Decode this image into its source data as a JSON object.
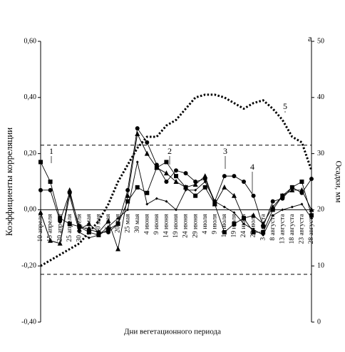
{
  "chart_data": {
    "type": "line",
    "panel_label": "а",
    "y_label": "Коэффициенты корреляции",
    "y2_label": "Осадки, мм",
    "x_label": "Дни вегетационного периода",
    "categories": [
      "10 апреля",
      "15 апреля",
      "20 апреля",
      "25 апреля",
      "30 апреля",
      "5 мая",
      "10 мая",
      "15 мая",
      "20 мая",
      "25 мая",
      "30 мая",
      "4 июня",
      "9 июня",
      "14 июня",
      "19 июня",
      "24 июня",
      "29 июня",
      "4 июля",
      "9 июля",
      "14 июля",
      "19 июля",
      "24 июля",
      "29 июля",
      "3 августа",
      "8 августа",
      "13 августа",
      "18 августа",
      "23 августа",
      "28 августа"
    ],
    "ylim": [
      -0.4,
      0.6
    ],
    "yticks": [
      {
        "value": -0.4,
        "label": "-0,40"
      },
      {
        "value": -0.2,
        "label": "-0,20"
      },
      {
        "value": 0,
        "label": "0,00"
      },
      {
        "value": 0.2,
        "label": "0,20"
      },
      {
        "value": 0.4,
        "label": "0,40"
      },
      {
        "value": 0.6,
        "label": "0,60"
      }
    ],
    "y2lim": [
      0,
      50
    ],
    "y2ticks": [
      0,
      10,
      20,
      30,
      40,
      50
    ],
    "threshold_lines": [
      0.23,
      -0.23
    ],
    "series": [
      {
        "name": "1",
        "color": "#000000",
        "marker": "square",
        "values": [
          0.17,
          0.1,
          -0.03,
          -0.05,
          -0.06,
          -0.08,
          -0.09,
          -0.07,
          -0.05,
          0.03,
          0.08,
          0.06,
          0.15,
          0.17,
          0.12,
          0.08,
          0.05,
          0.08,
          0.02,
          -0.08,
          -0.05,
          -0.03,
          -0.08,
          -0.08,
          0.0,
          0.05,
          0.08,
          0.1,
          -0.02
        ]
      },
      {
        "name": "2",
        "color": "#000000",
        "marker": "triangle",
        "values": [
          -0.01,
          -0.11,
          -0.12,
          0.07,
          -0.07,
          -0.05,
          -0.08,
          -0.04,
          -0.14,
          0.05,
          0.27,
          0.2,
          0.15,
          0.13,
          0.1,
          0.08,
          0.09,
          0.12,
          0.02,
          0.08,
          0.05,
          -0.03,
          -0.02,
          -0.05,
          0.01,
          0.05,
          0.07,
          0.07,
          0.0
        ]
      },
      {
        "name": "3",
        "color": "#000000",
        "marker": "circle",
        "values": [
          0.07,
          0.07,
          -0.04,
          0.06,
          -0.06,
          -0.07,
          -0.08,
          -0.08,
          -0.05,
          0.07,
          0.29,
          0.24,
          0.16,
          0.1,
          0.14,
          0.13,
          0.1,
          0.11,
          0.03,
          0.12,
          0.12,
          0.1,
          0.05,
          -0.06,
          0.03,
          0.04,
          0.08,
          0.06,
          0.11
        ]
      },
      {
        "name": "4",
        "color": "#000000",
        "marker": "diamond",
        "values": [
          -0.01,
          -0.11,
          -0.12,
          0.05,
          -0.08,
          -0.1,
          -0.09,
          -0.06,
          -0.03,
          0.0,
          0.17,
          0.02,
          0.04,
          0.03,
          0.0,
          0.07,
          0.07,
          0.1,
          0.03,
          0.01,
          -0.01,
          -0.05,
          -0.07,
          -0.09,
          -0.02,
          0.0,
          0.01,
          0.02,
          -0.03
        ]
      },
      {
        "name": "5",
        "color": "#000000",
        "marker": "none",
        "axis": "y2",
        "values": [
          10,
          11,
          12,
          13,
          14,
          16,
          18,
          21,
          25,
          28,
          31,
          33,
          33,
          35,
          36,
          38,
          40,
          40.5,
          40.5,
          40,
          39,
          38,
          39,
          39.5,
          38,
          36,
          33,
          32,
          27
        ]
      }
    ]
  }
}
